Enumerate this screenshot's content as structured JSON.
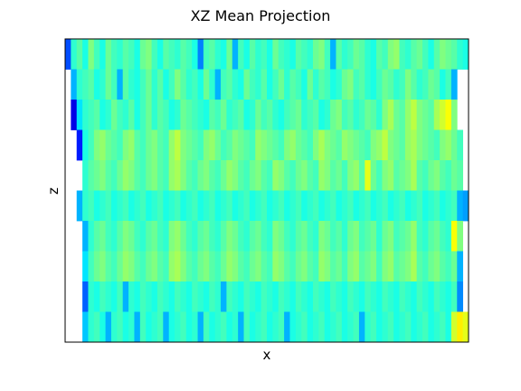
{
  "chart_data": {
    "type": "heatmap",
    "title": "XZ Mean Projection",
    "xlabel": "x",
    "ylabel": "z",
    "x_ticks": [],
    "y_ticks": [],
    "colormap": "jet",
    "grid": false,
    "rows": 10,
    "columns": 70,
    "value_range": [
      0,
      1
    ],
    "values": [
      [
        0.2,
        0.42,
        0.46,
        0.4,
        0.5,
        0.44,
        0.4,
        0.48,
        0.44,
        0.42,
        0.46,
        0.44,
        0.4,
        0.48,
        0.5,
        0.44,
        0.4,
        0.46,
        0.44,
        0.42,
        0.46,
        0.44,
        0.4,
        0.25,
        0.44,
        0.46,
        0.42,
        0.4,
        0.48,
        0.3,
        0.44,
        0.4,
        0.46,
        0.42,
        0.44,
        0.4,
        0.48,
        0.44,
        0.42,
        0.4,
        0.46,
        0.44,
        0.42,
        0.48,
        0.5,
        0.44,
        0.3,
        0.46,
        0.42,
        0.44,
        0.48,
        0.46,
        0.42,
        0.4,
        0.46,
        0.44,
        0.5,
        0.52,
        0.44,
        0.42,
        0.46,
        0.48,
        0.44,
        0.4,
        0.46,
        0.5,
        0.48,
        0.46,
        0.42,
        0.4
      ],
      [
        null,
        0.3,
        0.42,
        0.44,
        0.46,
        0.4,
        0.42,
        0.48,
        0.44,
        0.3,
        0.46,
        0.42,
        0.4,
        0.44,
        0.48,
        0.42,
        0.46,
        0.4,
        0.44,
        0.5,
        0.46,
        0.42,
        0.44,
        0.4,
        0.48,
        0.42,
        0.3,
        0.44,
        0.46,
        0.42,
        0.4,
        0.48,
        0.44,
        0.42,
        0.46,
        0.4,
        0.44,
        0.48,
        0.42,
        0.46,
        0.44,
        0.4,
        0.48,
        0.42,
        0.46,
        0.44,
        0.4,
        0.42,
        0.48,
        0.5,
        0.44,
        0.46,
        0.42,
        0.4,
        0.44,
        0.48,
        0.46,
        0.42,
        0.44,
        0.5,
        0.46,
        0.42,
        0.44,
        0.48,
        0.46,
        0.4,
        0.44,
        0.3,
        null,
        null
      ],
      [
        null,
        0.1,
        0.35,
        0.42,
        0.44,
        0.46,
        0.4,
        0.42,
        0.48,
        0.44,
        0.42,
        0.46,
        0.4,
        0.44,
        0.48,
        0.42,
        0.46,
        0.44,
        0.4,
        0.42,
        0.48,
        0.46,
        0.44,
        0.42,
        0.4,
        0.46,
        0.44,
        0.48,
        0.42,
        0.44,
        0.46,
        0.4,
        0.42,
        0.48,
        0.44,
        0.46,
        0.42,
        0.4,
        0.44,
        0.46,
        0.48,
        0.42,
        0.44,
        0.46,
        0.4,
        0.42,
        0.48,
        0.5,
        0.44,
        0.46,
        0.42,
        0.44,
        0.48,
        0.46,
        0.42,
        0.5,
        0.54,
        0.48,
        0.46,
        0.52,
        0.56,
        0.5,
        0.48,
        0.46,
        0.54,
        0.58,
        0.62,
        0.5,
        null,
        null
      ],
      [
        null,
        null,
        0.15,
        0.4,
        0.44,
        0.5,
        0.52,
        0.48,
        0.46,
        0.44,
        0.5,
        0.52,
        0.46,
        0.44,
        0.48,
        0.5,
        0.46,
        0.44,
        0.52,
        0.56,
        0.5,
        0.48,
        0.46,
        0.44,
        0.5,
        0.52,
        0.48,
        0.44,
        0.46,
        0.5,
        0.48,
        0.46,
        0.44,
        0.52,
        0.5,
        0.48,
        0.46,
        0.44,
        0.5,
        0.52,
        0.48,
        0.46,
        0.44,
        0.5,
        0.54,
        0.5,
        0.48,
        0.46,
        0.52,
        0.5,
        0.48,
        0.46,
        0.44,
        0.5,
        0.52,
        0.56,
        0.5,
        0.48,
        0.46,
        0.52,
        0.54,
        0.5,
        0.48,
        0.46,
        0.44,
        0.5,
        0.52,
        0.48,
        0.44,
        null
      ],
      [
        null,
        null,
        null,
        0.42,
        0.46,
        0.48,
        0.5,
        0.46,
        0.44,
        0.48,
        0.52,
        0.5,
        0.46,
        0.44,
        0.48,
        0.5,
        0.46,
        0.44,
        0.52,
        0.54,
        0.5,
        0.46,
        0.44,
        0.48,
        0.5,
        0.46,
        0.44,
        0.48,
        0.52,
        0.5,
        0.46,
        0.44,
        0.48,
        0.5,
        0.46,
        0.44,
        0.52,
        0.5,
        0.46,
        0.44,
        0.48,
        0.5,
        0.46,
        0.44,
        0.52,
        0.5,
        0.46,
        0.48,
        0.44,
        0.5,
        0.52,
        0.46,
        0.6,
        0.48,
        0.44,
        0.5,
        0.52,
        0.46,
        0.48,
        0.5,
        0.54,
        0.46,
        0.44,
        0.48,
        0.5,
        0.46,
        0.44,
        0.48,
        0.46,
        null
      ],
      [
        null,
        null,
        0.3,
        0.42,
        0.44,
        0.4,
        0.42,
        0.44,
        0.4,
        0.42,
        0.44,
        0.4,
        0.42,
        0.44,
        0.4,
        0.42,
        0.44,
        0.4,
        0.42,
        0.44,
        0.4,
        0.42,
        0.44,
        0.4,
        0.42,
        0.44,
        0.4,
        0.42,
        0.44,
        0.4,
        0.42,
        0.44,
        0.4,
        0.42,
        0.44,
        0.4,
        0.42,
        0.44,
        0.4,
        0.42,
        0.44,
        0.4,
        0.42,
        0.44,
        0.4,
        0.42,
        0.44,
        0.4,
        0.42,
        0.44,
        0.4,
        0.42,
        0.44,
        0.4,
        0.42,
        0.44,
        0.4,
        0.42,
        0.44,
        0.4,
        0.42,
        0.44,
        0.4,
        0.42,
        0.44,
        0.4,
        0.42,
        0.44,
        0.3,
        0.28
      ],
      [
        null,
        null,
        null,
        0.3,
        0.42,
        0.46,
        0.48,
        0.44,
        0.42,
        0.46,
        0.5,
        0.48,
        0.44,
        0.42,
        0.46,
        0.48,
        0.44,
        0.42,
        0.5,
        0.52,
        0.48,
        0.44,
        0.42,
        0.46,
        0.48,
        0.44,
        0.42,
        0.46,
        0.5,
        0.48,
        0.44,
        0.42,
        0.46,
        0.48,
        0.44,
        0.42,
        0.5,
        0.48,
        0.44,
        0.42,
        0.46,
        0.48,
        0.44,
        0.42,
        0.5,
        0.48,
        0.44,
        0.46,
        0.42,
        0.48,
        0.5,
        0.44,
        0.46,
        0.48,
        0.42,
        0.48,
        0.5,
        0.44,
        0.46,
        0.48,
        0.52,
        0.44,
        0.42,
        0.46,
        0.48,
        0.44,
        0.42,
        0.62,
        0.5,
        null
      ],
      [
        null,
        null,
        null,
        0.35,
        0.44,
        0.48,
        0.5,
        0.46,
        0.44,
        0.48,
        0.52,
        0.5,
        0.46,
        0.44,
        0.48,
        0.5,
        0.46,
        0.44,
        0.52,
        0.54,
        0.5,
        0.46,
        0.44,
        0.48,
        0.5,
        0.46,
        0.44,
        0.48,
        0.52,
        0.5,
        0.46,
        0.44,
        0.48,
        0.5,
        0.46,
        0.44,
        0.52,
        0.5,
        0.46,
        0.44,
        0.48,
        0.5,
        0.46,
        0.44,
        0.52,
        0.5,
        0.46,
        0.48,
        0.44,
        0.5,
        0.52,
        0.46,
        0.48,
        0.5,
        0.44,
        0.5,
        0.52,
        0.46,
        0.48,
        0.5,
        0.54,
        0.46,
        0.44,
        0.48,
        0.5,
        0.46,
        0.44,
        0.48,
        0.3,
        null
      ],
      [
        null,
        null,
        null,
        0.22,
        0.42,
        0.4,
        0.44,
        0.42,
        0.4,
        0.44,
        0.3,
        0.42,
        0.4,
        0.44,
        0.42,
        0.4,
        0.44,
        0.42,
        0.4,
        0.44,
        0.42,
        0.4,
        0.44,
        0.42,
        0.4,
        0.44,
        0.42,
        0.3,
        0.44,
        0.42,
        0.4,
        0.44,
        0.42,
        0.4,
        0.44,
        0.42,
        0.4,
        0.44,
        0.42,
        0.4,
        0.44,
        0.42,
        0.4,
        0.44,
        0.42,
        0.4,
        0.44,
        0.42,
        0.4,
        0.44,
        0.42,
        0.4,
        0.44,
        0.42,
        0.4,
        0.44,
        0.42,
        0.4,
        0.44,
        0.42,
        0.4,
        0.44,
        0.42,
        0.4,
        0.44,
        0.42,
        0.4,
        0.44,
        0.26,
        null
      ],
      [
        null,
        null,
        null,
        0.32,
        0.42,
        0.44,
        0.4,
        0.3,
        0.42,
        0.44,
        0.4,
        0.42,
        0.3,
        0.44,
        0.4,
        0.42,
        0.44,
        0.3,
        0.4,
        0.42,
        0.44,
        0.4,
        0.42,
        0.3,
        0.44,
        0.4,
        0.42,
        0.44,
        0.4,
        0.42,
        0.3,
        0.44,
        0.4,
        0.42,
        0.44,
        0.4,
        0.42,
        0.44,
        0.3,
        0.4,
        0.42,
        0.44,
        0.4,
        0.42,
        0.44,
        0.4,
        0.42,
        0.44,
        0.4,
        0.42,
        0.44,
        0.3,
        0.42,
        0.44,
        0.4,
        0.42,
        0.44,
        0.4,
        0.42,
        0.44,
        0.4,
        0.42,
        0.44,
        0.4,
        0.42,
        0.44,
        0.4,
        0.58,
        0.64,
        0.6
      ]
    ]
  }
}
